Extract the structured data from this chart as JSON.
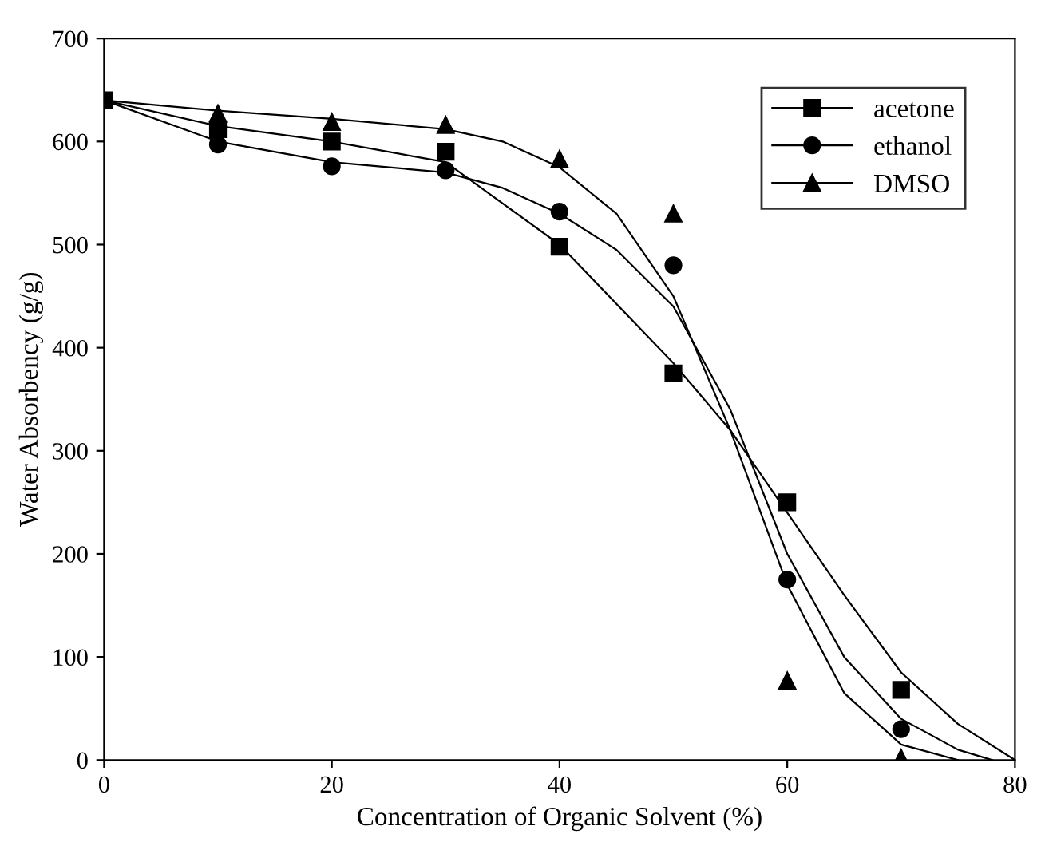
{
  "chart_data": {
    "type": "scatter",
    "xlabel": "Concentration of Organic Solvent (%)",
    "ylabel": "Water Absorbency (g/g)",
    "x": [
      0,
      10,
      20,
      30,
      40,
      50,
      60,
      70
    ],
    "series": [
      {
        "name": "acetone",
        "color": "#000000",
        "marker": "square",
        "values": [
          640,
          612,
          600,
          590,
          498,
          375,
          250,
          68
        ]
      },
      {
        "name": "ethanol",
        "color": "#000000",
        "marker": "circle",
        "values": [
          null,
          597,
          576,
          572,
          532,
          480,
          175,
          30
        ]
      },
      {
        "name": "DMSO",
        "color": "#000000",
        "marker": "triangle",
        "values": [
          null,
          627,
          619,
          616,
          583,
          530,
          77,
          2
        ]
      },
      {
        "type": "line",
        "color": "#000000",
        "marker": "none",
        "x": [
          0,
          10,
          20,
          30,
          40,
          50,
          55,
          60,
          65,
          70,
          75,
          80
        ],
        "values": [
          640,
          615,
          600,
          580,
          500,
          385,
          320,
          240,
          160,
          85,
          35,
          0
        ]
      },
      {
        "type": "line",
        "color": "#000000",
        "marker": "none",
        "x": [
          0,
          10,
          20,
          30,
          35,
          40,
          45,
          50,
          55,
          60,
          65,
          70,
          75,
          78
        ],
        "values": [
          640,
          600,
          580,
          570,
          555,
          530,
          495,
          440,
          340,
          200,
          100,
          40,
          10,
          0
        ]
      },
      {
        "type": "line",
        "color": "#000000",
        "marker": "none",
        "x": [
          0,
          10,
          20,
          30,
          35,
          40,
          45,
          50,
          55,
          60,
          65,
          70,
          75
        ],
        "values": [
          640,
          630,
          622,
          612,
          600,
          575,
          530,
          450,
          320,
          170,
          65,
          15,
          0
        ]
      }
    ],
    "xlim": [
      0,
      80
    ],
    "xticks": [
      0,
      20,
      40,
      60,
      80
    ],
    "ylim": [
      0,
      700
    ],
    "yticks": [
      0,
      100,
      200,
      300,
      400,
      500,
      600,
      700
    ],
    "grid": false,
    "legend": "top right",
    "line_style": "solid"
  }
}
